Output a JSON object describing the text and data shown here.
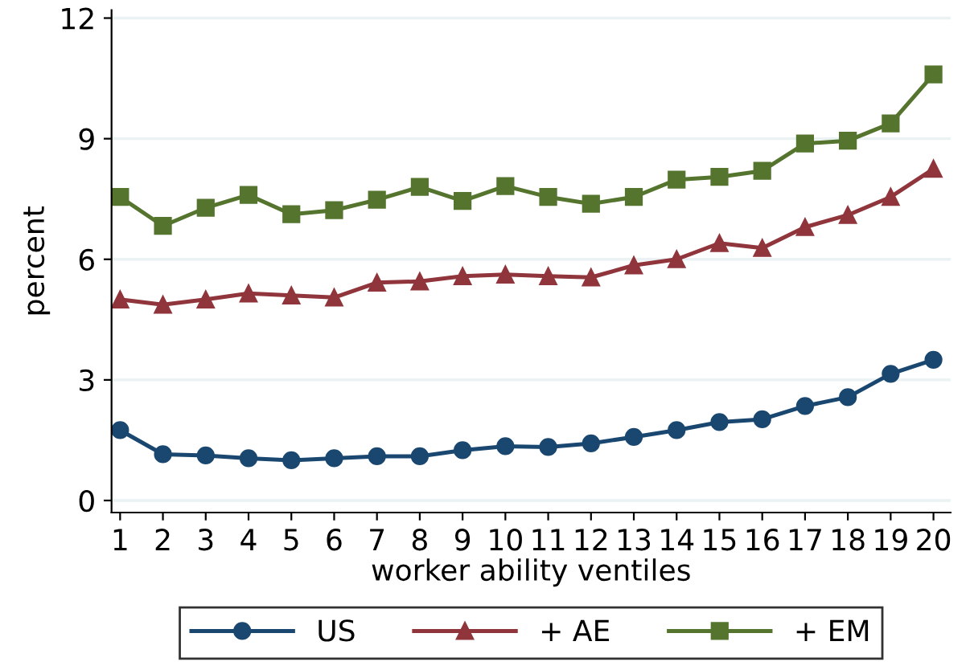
{
  "chart_data": {
    "type": "line",
    "xlabel": "worker ability ventiles",
    "ylabel": "percent",
    "x": [
      1,
      2,
      3,
      4,
      5,
      6,
      7,
      8,
      9,
      10,
      11,
      12,
      13,
      14,
      15,
      16,
      17,
      18,
      19,
      20
    ],
    "xlim": [
      0.8,
      20.4
    ],
    "xticks": [
      1,
      2,
      3,
      4,
      5,
      6,
      7,
      8,
      9,
      10,
      11,
      12,
      13,
      14,
      15,
      16,
      17,
      18,
      19,
      20
    ],
    "ylim": [
      -0.3,
      12.2
    ],
    "yticks": [
      0,
      3,
      6,
      9,
      12
    ],
    "grid": "y",
    "legend": "bottom",
    "series": [
      {
        "name": "US",
        "color": "#1a476f",
        "marker": "circle",
        "values": [
          1.75,
          1.15,
          1.12,
          1.05,
          1.0,
          1.05,
          1.1,
          1.1,
          1.25,
          1.35,
          1.33,
          1.42,
          1.58,
          1.75,
          1.95,
          2.02,
          2.35,
          2.57,
          3.15,
          3.5
        ]
      },
      {
        "name": "+ AE",
        "color": "#90353b",
        "marker": "triangle",
        "values": [
          5.0,
          4.87,
          5.0,
          5.15,
          5.1,
          5.05,
          5.42,
          5.45,
          5.58,
          5.62,
          5.58,
          5.55,
          5.85,
          6.0,
          6.4,
          6.28,
          6.8,
          7.1,
          7.55,
          8.25
        ]
      },
      {
        "name": "+ EM",
        "color": "#55752f",
        "marker": "square",
        "values": [
          7.55,
          6.83,
          7.28,
          7.6,
          7.12,
          7.22,
          7.48,
          7.8,
          7.45,
          7.82,
          7.55,
          7.38,
          7.55,
          7.98,
          8.05,
          8.2,
          8.88,
          8.95,
          9.38,
          10.6
        ]
      }
    ]
  }
}
